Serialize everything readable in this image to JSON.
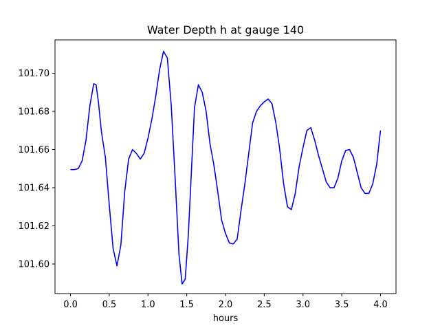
{
  "chart_data": {
    "type": "line",
    "title": "Water Depth h at gauge 140",
    "xlabel": "hours",
    "ylabel": "",
    "xlim": [
      -0.2,
      4.2
    ],
    "ylim": [
      101.5845,
      101.7175
    ],
    "xticks": [
      0.0,
      0.5,
      1.0,
      1.5,
      2.0,
      2.5,
      3.0,
      3.5,
      4.0
    ],
    "xtick_labels": [
      "0.0",
      "0.5",
      "1.0",
      "1.5",
      "2.0",
      "2.5",
      "3.0",
      "3.5",
      "4.0"
    ],
    "yticks": [
      101.6,
      101.62,
      101.64,
      101.66,
      101.68,
      101.7
    ],
    "ytick_labels": [
      "101.60",
      "101.62",
      "101.64",
      "101.66",
      "101.68",
      "101.70"
    ],
    "grid": false,
    "series": [
      {
        "color": "#0000ff",
        "x": [
          0.0,
          0.05,
          0.1,
          0.15,
          0.2,
          0.25,
          0.3,
          0.33,
          0.36,
          0.4,
          0.45,
          0.5,
          0.55,
          0.6,
          0.65,
          0.7,
          0.75,
          0.8,
          0.85,
          0.9,
          0.95,
          1.0,
          1.05,
          1.1,
          1.15,
          1.2,
          1.25,
          1.3,
          1.35,
          1.4,
          1.44,
          1.48,
          1.52,
          1.55,
          1.6,
          1.65,
          1.7,
          1.75,
          1.8,
          1.85,
          1.9,
          1.95,
          2.0,
          2.05,
          2.1,
          2.15,
          2.2,
          2.25,
          2.3,
          2.35,
          2.4,
          2.45,
          2.5,
          2.55,
          2.6,
          2.65,
          2.7,
          2.75,
          2.8,
          2.85,
          2.9,
          2.95,
          3.0,
          3.05,
          3.1,
          3.15,
          3.2,
          3.25,
          3.3,
          3.35,
          3.4,
          3.45,
          3.5,
          3.55,
          3.6,
          3.65,
          3.7,
          3.75,
          3.8,
          3.85,
          3.9,
          3.95,
          4.0
        ],
        "y": [
          101.6495,
          101.6495,
          101.65,
          101.654,
          101.665,
          101.683,
          101.6945,
          101.694,
          101.685,
          101.669,
          101.656,
          101.631,
          101.608,
          101.599,
          101.61,
          101.638,
          101.655,
          101.66,
          101.658,
          101.655,
          101.658,
          101.666,
          101.676,
          101.688,
          101.702,
          101.7115,
          101.708,
          101.683,
          101.645,
          101.605,
          101.5895,
          101.592,
          101.615,
          101.64,
          101.682,
          101.694,
          101.69,
          101.68,
          101.663,
          101.652,
          101.638,
          101.623,
          101.616,
          101.611,
          101.6105,
          101.613,
          101.628,
          101.642,
          101.658,
          101.674,
          101.68,
          101.683,
          101.685,
          101.6865,
          101.684,
          101.674,
          101.66,
          101.642,
          101.63,
          101.6285,
          101.637,
          101.651,
          101.661,
          101.67,
          101.6715,
          101.665,
          101.657,
          101.65,
          101.643,
          101.64,
          101.64,
          101.645,
          101.654,
          101.6595,
          101.66,
          101.656,
          101.648,
          101.64,
          101.637,
          101.637,
          101.642,
          101.652,
          101.67
        ]
      }
    ]
  }
}
